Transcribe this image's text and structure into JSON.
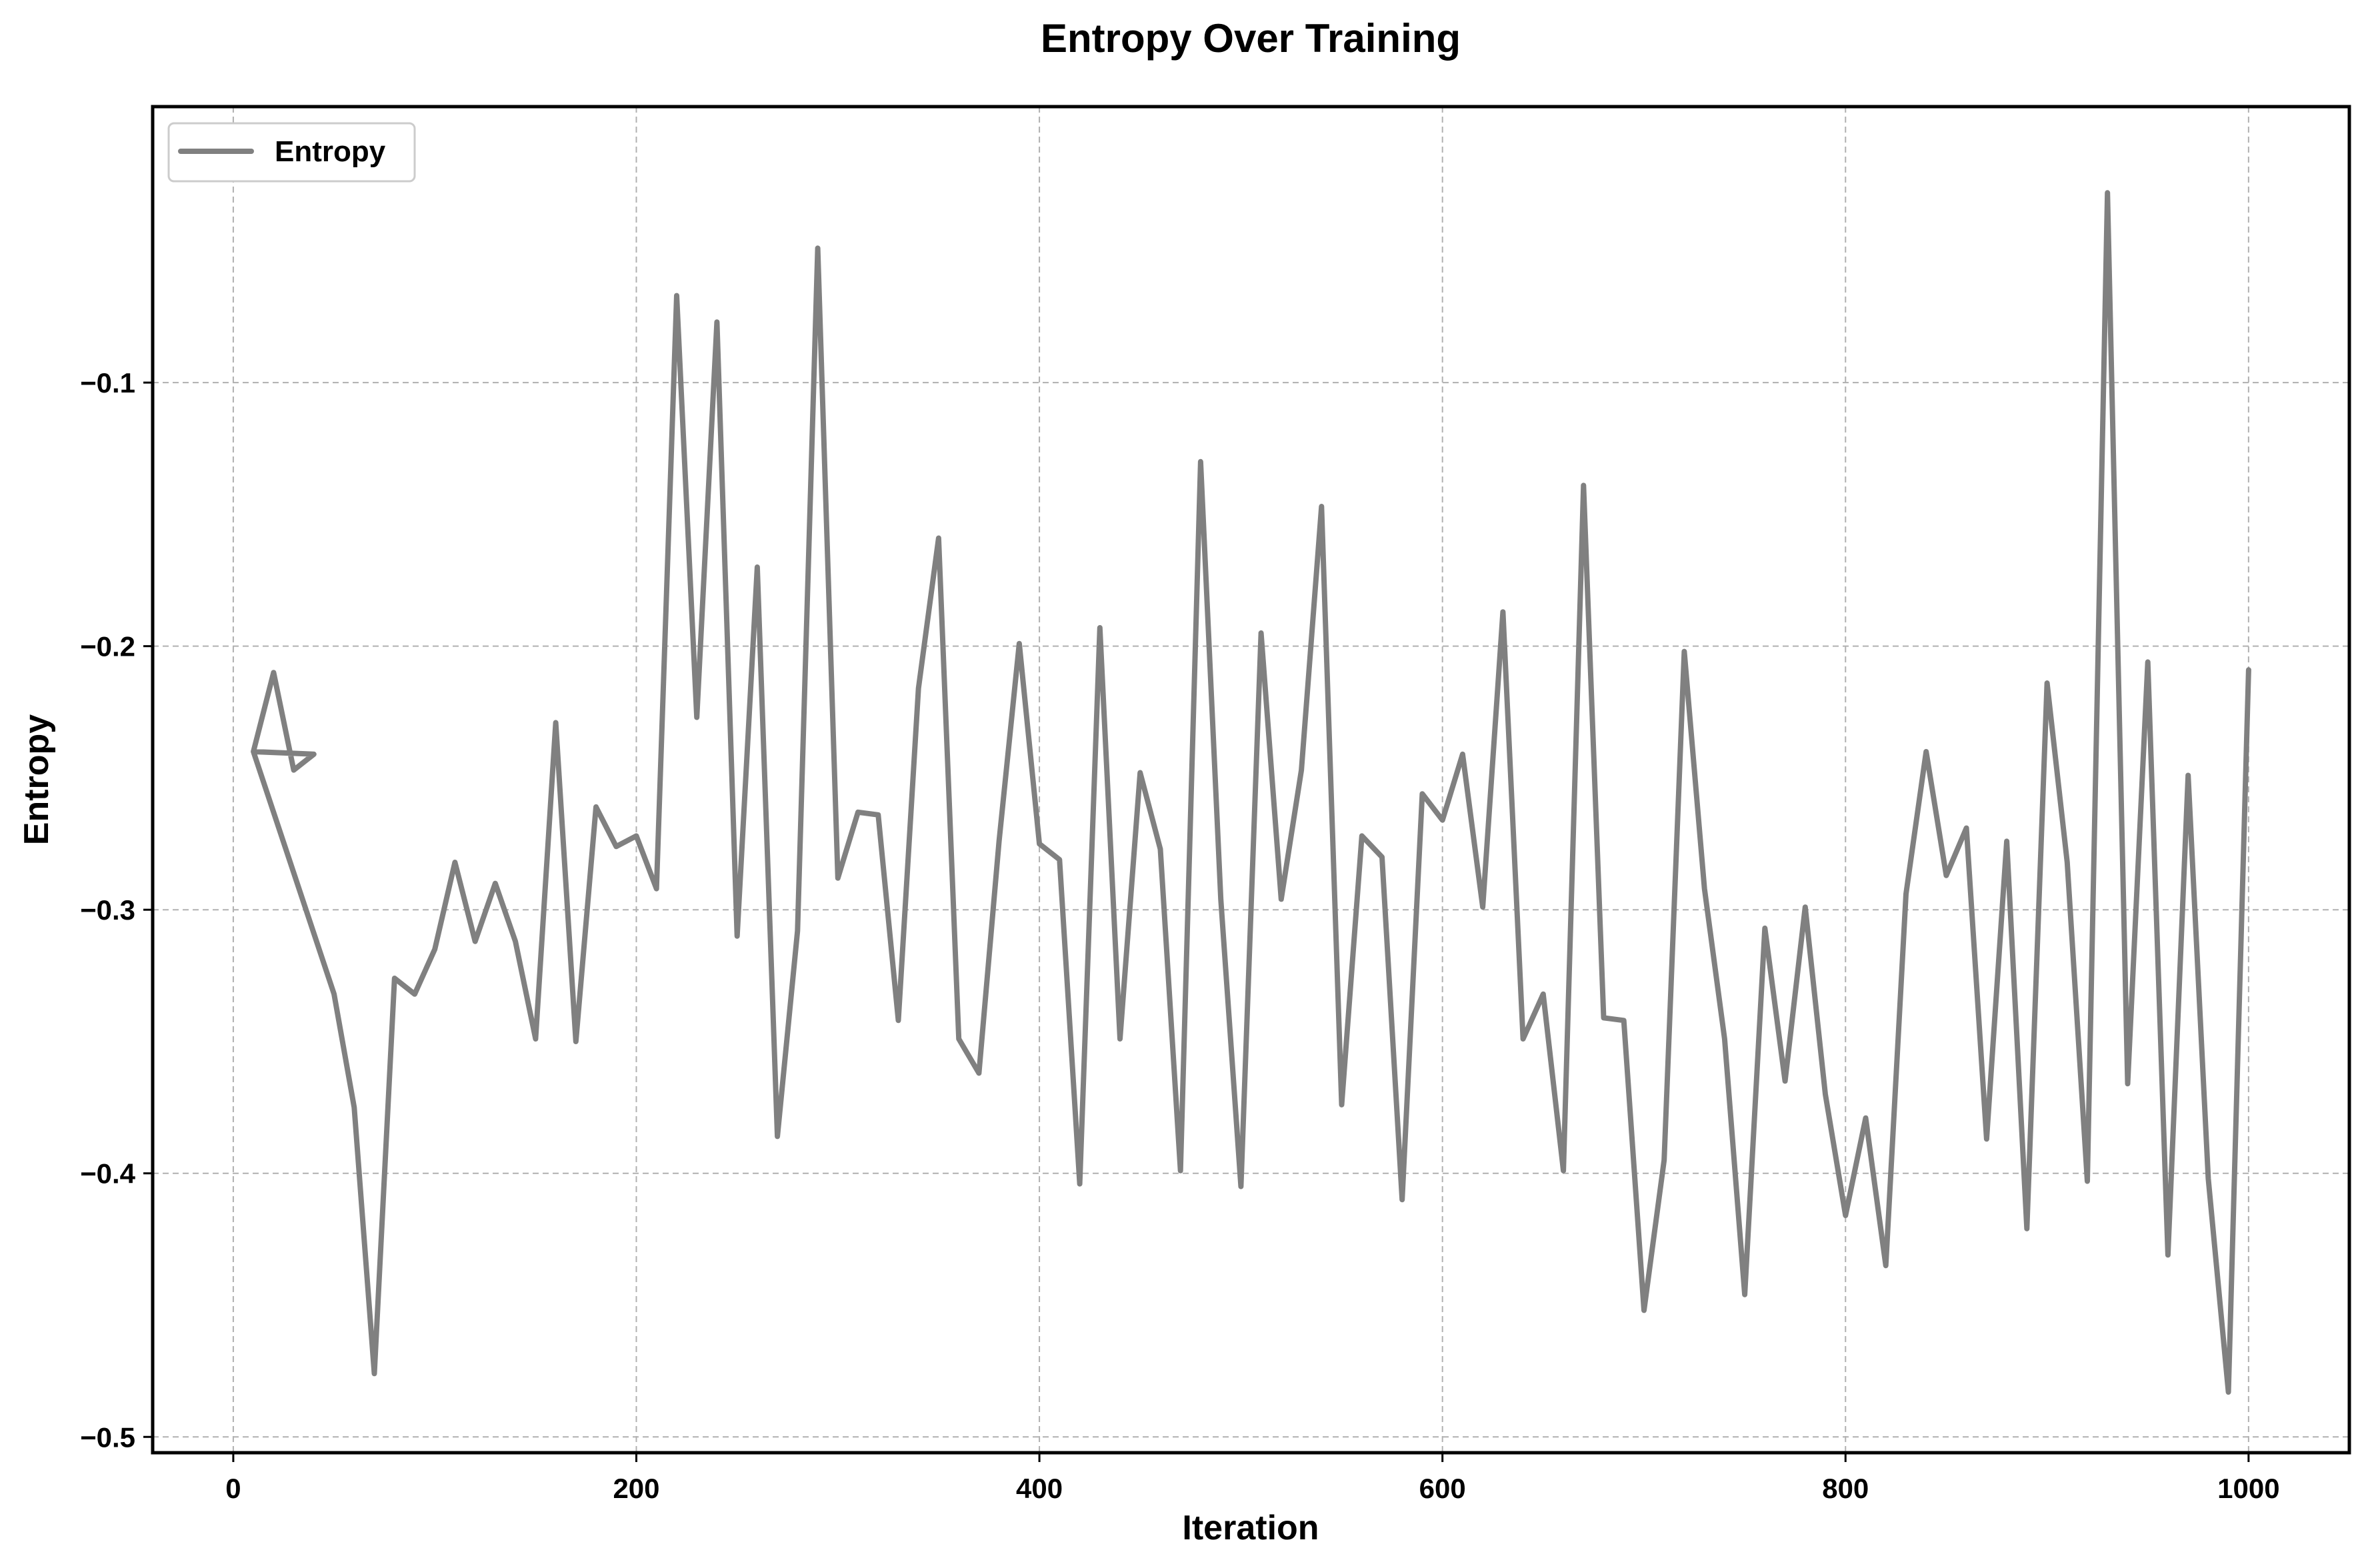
{
  "chart_data": {
    "type": "line",
    "title": "Entropy Over Training",
    "xlabel": "Iteration",
    "ylabel": "Entropy",
    "xlim": [
      -40,
      1050
    ],
    "ylim": [
      -0.506,
      0.0047
    ],
    "xticks": [
      0,
      200,
      400,
      600,
      800,
      1000
    ],
    "yticks": [
      -0.5,
      -0.4,
      -0.3,
      -0.2,
      -0.1
    ],
    "xtick_labels": [
      "0",
      "200",
      "400",
      "600",
      "800",
      "1000"
    ],
    "ytick_labels": [
      "−0.5",
      "−0.4",
      "−0.3",
      "−0.2",
      "−0.1"
    ],
    "grid": true,
    "legend_position": "top-left",
    "series": [
      {
        "name": "Entropy",
        "color": "#808080",
        "x": [
          10,
          20,
          30,
          40,
          10,
          50,
          60,
          70,
          80,
          90,
          100,
          110,
          120,
          130,
          140,
          150,
          160,
          170,
          180,
          190,
          200,
          210,
          220,
          230,
          240,
          250,
          260,
          270,
          280,
          290,
          300,
          310,
          320,
          330,
          340,
          350,
          360,
          370,
          380,
          390,
          400,
          410,
          420,
          430,
          440,
          450,
          460,
          470,
          480,
          490,
          500,
          510,
          520,
          530,
          540,
          550,
          560,
          570,
          580,
          590,
          600,
          610,
          620,
          630,
          640,
          650,
          660,
          670,
          680,
          690,
          700,
          710,
          720,
          730,
          740,
          750,
          760,
          770,
          780,
          790,
          800,
          810,
          820,
          830,
          840,
          850,
          860,
          870,
          880,
          890,
          900,
          910,
          920,
          930,
          940,
          950,
          960,
          970,
          980,
          990,
          1000
        ],
        "y": [
          -0.24,
          -0.21,
          -0.247,
          -0.241,
          -0.24,
          -0.332,
          -0.375,
          -0.476,
          -0.326,
          -0.332,
          -0.315,
          -0.282,
          -0.312,
          -0.29,
          -0.312,
          -0.349,
          -0.229,
          -0.35,
          -0.261,
          -0.276,
          -0.272,
          -0.292,
          -0.067,
          -0.227,
          -0.077,
          -0.31,
          -0.17,
          -0.386,
          -0.308,
          -0.049,
          -0.288,
          -0.263,
          -0.264,
          -0.342,
          -0.216,
          -0.159,
          -0.349,
          -0.362,
          -0.274,
          -0.199,
          -0.275,
          -0.281,
          -0.404,
          -0.193,
          -0.349,
          -0.248,
          -0.277,
          -0.399,
          -0.13,
          -0.296,
          -0.405,
          -0.195,
          -0.296,
          -0.247,
          -0.147,
          -0.374,
          -0.272,
          -0.28,
          -0.41,
          -0.256,
          -0.266,
          -0.241,
          -0.299,
          -0.187,
          -0.349,
          -0.332,
          -0.399,
          -0.139,
          -0.341,
          -0.342,
          -0.452,
          -0.395,
          -0.202,
          -0.292,
          -0.349,
          -0.446,
          -0.307,
          -0.365,
          -0.299,
          -0.37,
          -0.416,
          -0.379,
          -0.435,
          -0.294,
          -0.24,
          -0.287,
          -0.269,
          -0.387,
          -0.274,
          -0.421,
          -0.214,
          -0.282,
          -0.403,
          -0.028,
          -0.366,
          -0.206,
          -0.431,
          -0.249,
          -0.402,
          -0.483,
          -0.209
        ]
      }
    ]
  }
}
